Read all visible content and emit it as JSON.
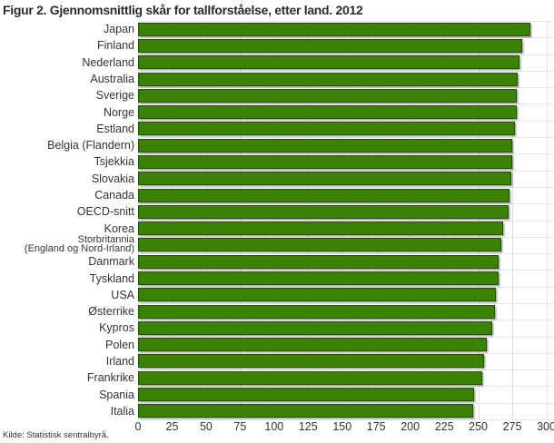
{
  "title": "Figur 2. Gjennomsnittlig skår for tallforståelse, etter land. 2012",
  "source": "Kilde: Statistisk sentralbyrå.",
  "colors": {
    "bar_fill": "#3a8104",
    "bar_border": "#255207",
    "gridline_vertical": "#e0e0e0",
    "gridline_horizontal": "#e6e6e6",
    "title_text": "#2b2b2b",
    "label_text": "#333333",
    "background": "#ffffff"
  },
  "chart_data": {
    "type": "bar",
    "orientation": "horizontal",
    "title": "Figur 2. Gjennomsnittlig skår for tallforståelse, etter land. 2012",
    "xlabel": "",
    "ylabel": "",
    "xlim": [
      0,
      300
    ],
    "xticks": [
      0,
      25,
      50,
      75,
      100,
      125,
      150,
      175,
      200,
      225,
      250,
      275,
      300
    ],
    "grid": true,
    "legend": false,
    "source": "Kilde: Statistisk sentralbyrå.",
    "categories": [
      "Japan",
      "Finland",
      "Nederland",
      "Australia",
      "Sverige",
      "Norge",
      "Estland",
      "Belgia (Flandern)",
      "Tsjekkia",
      "Slovakia",
      "Canada",
      "OECD-snitt",
      "Korea",
      "Storbritannia (England og Nord-Irland)",
      "Danmark",
      "Tyskland",
      "USA",
      "Østerrike",
      "Kypros",
      "Polen",
      "Irland",
      "Frankrike",
      "Spania",
      "Italia"
    ],
    "values": [
      288,
      282,
      280,
      279,
      278,
      278,
      277,
      275,
      275,
      274,
      273,
      272,
      268,
      267,
      265,
      265,
      263,
      262,
      260,
      256,
      254,
      253,
      247,
      246
    ]
  }
}
